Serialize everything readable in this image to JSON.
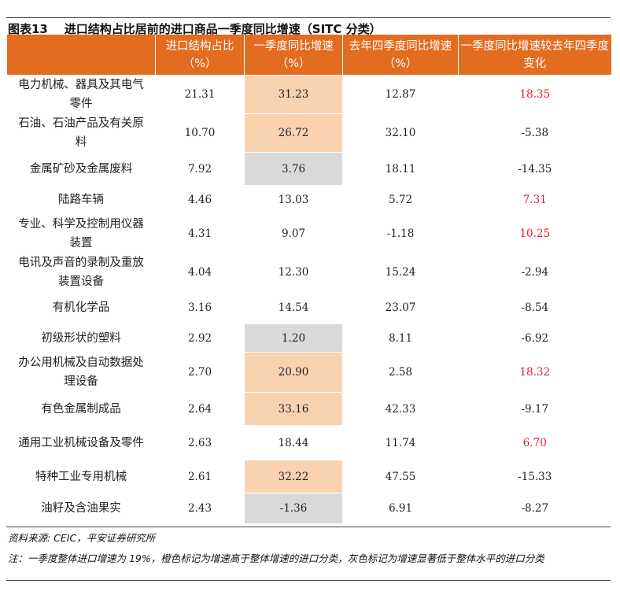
{
  "title": "图表13    进口结构占比居前的进口商品一季度同比增速（SITC 分类）",
  "headers": [
    "",
    "进口结构占比（%）",
    "一季度同比增速（%）",
    "去年四季度同比增速（%）",
    "一季度同比增速较去年四季度变化"
  ],
  "colors": {
    "header": "#e36c20",
    "orange_mark": "#f9d2b0",
    "gray_mark": "#d9d9d9",
    "positive_change": "#e8192c"
  },
  "rows": [
    {
      "name": "电力机械、器具及其电气零件",
      "share": "21.31",
      "q1": "31.23",
      "q4": "12.87",
      "change": "18.35",
      "mark": "orange",
      "red": true
    },
    {
      "name": "石油、石油产品及有关原料",
      "share": "10.70",
      "q1": "26.72",
      "q4": "32.10",
      "change": "-5.38",
      "mark": "orange",
      "red": false
    },
    {
      "name": "金属矿砂及金属废料",
      "share": "7.92",
      "q1": "3.76",
      "q4": "18.11",
      "change": "-14.35",
      "mark": "gray",
      "red": false
    },
    {
      "name": "陆路车辆",
      "share": "4.46",
      "q1": "13.03",
      "q4": "5.72",
      "change": "7.31",
      "mark": "",
      "red": true
    },
    {
      "name": "专业、科学及控制用仪器装置",
      "share": "4.31",
      "q1": "9.07",
      "q4": "-1.18",
      "change": "10.25",
      "mark": "",
      "red": true
    },
    {
      "name": "电讯及声音的录制及重放装置设备",
      "share": "4.04",
      "q1": "12.30",
      "q4": "15.24",
      "change": "-2.94",
      "mark": "",
      "red": false
    },
    {
      "name": "有机化学品",
      "share": "3.16",
      "q1": "14.54",
      "q4": "23.07",
      "change": "-8.54",
      "mark": "",
      "red": false
    },
    {
      "name": "初级形状的塑料",
      "share": "2.92",
      "q1": "1.20",
      "q4": "8.11",
      "change": "-6.92",
      "mark": "gray",
      "red": false
    },
    {
      "name": "办公用机械及自动数据处理设备",
      "share": "2.70",
      "q1": "20.90",
      "q4": "2.58",
      "change": "18.32",
      "mark": "orange",
      "red": true
    },
    {
      "name": "有色金属制成品",
      "share": "2.64",
      "q1": "33.16",
      "q4": "42.33",
      "change": "-9.17",
      "mark": "orange",
      "red": false
    },
    {
      "name": "通用工业机械设备及零件",
      "share": "2.63",
      "q1": "18.44",
      "q4": "11.74",
      "change": "6.70",
      "mark": "",
      "red": true
    },
    {
      "name": "特种工业专用机械",
      "share": "2.61",
      "q1": "32.22",
      "q4": "47.55",
      "change": "-15.33",
      "mark": "orange",
      "red": false
    },
    {
      "name": "油籽及含油果实",
      "share": "2.43",
      "q1": "-1.36",
      "q4": "6.91",
      "change": "-8.27",
      "mark": "gray",
      "red": false
    }
  ],
  "source": "资料来源: CEIC，平安证券研究所",
  "note": "注：一季度整体进口增速为 19%，橙色标记为增速高于整体增速的进口分类，灰色标记为增速显著低于整体水平的进口分类"
}
